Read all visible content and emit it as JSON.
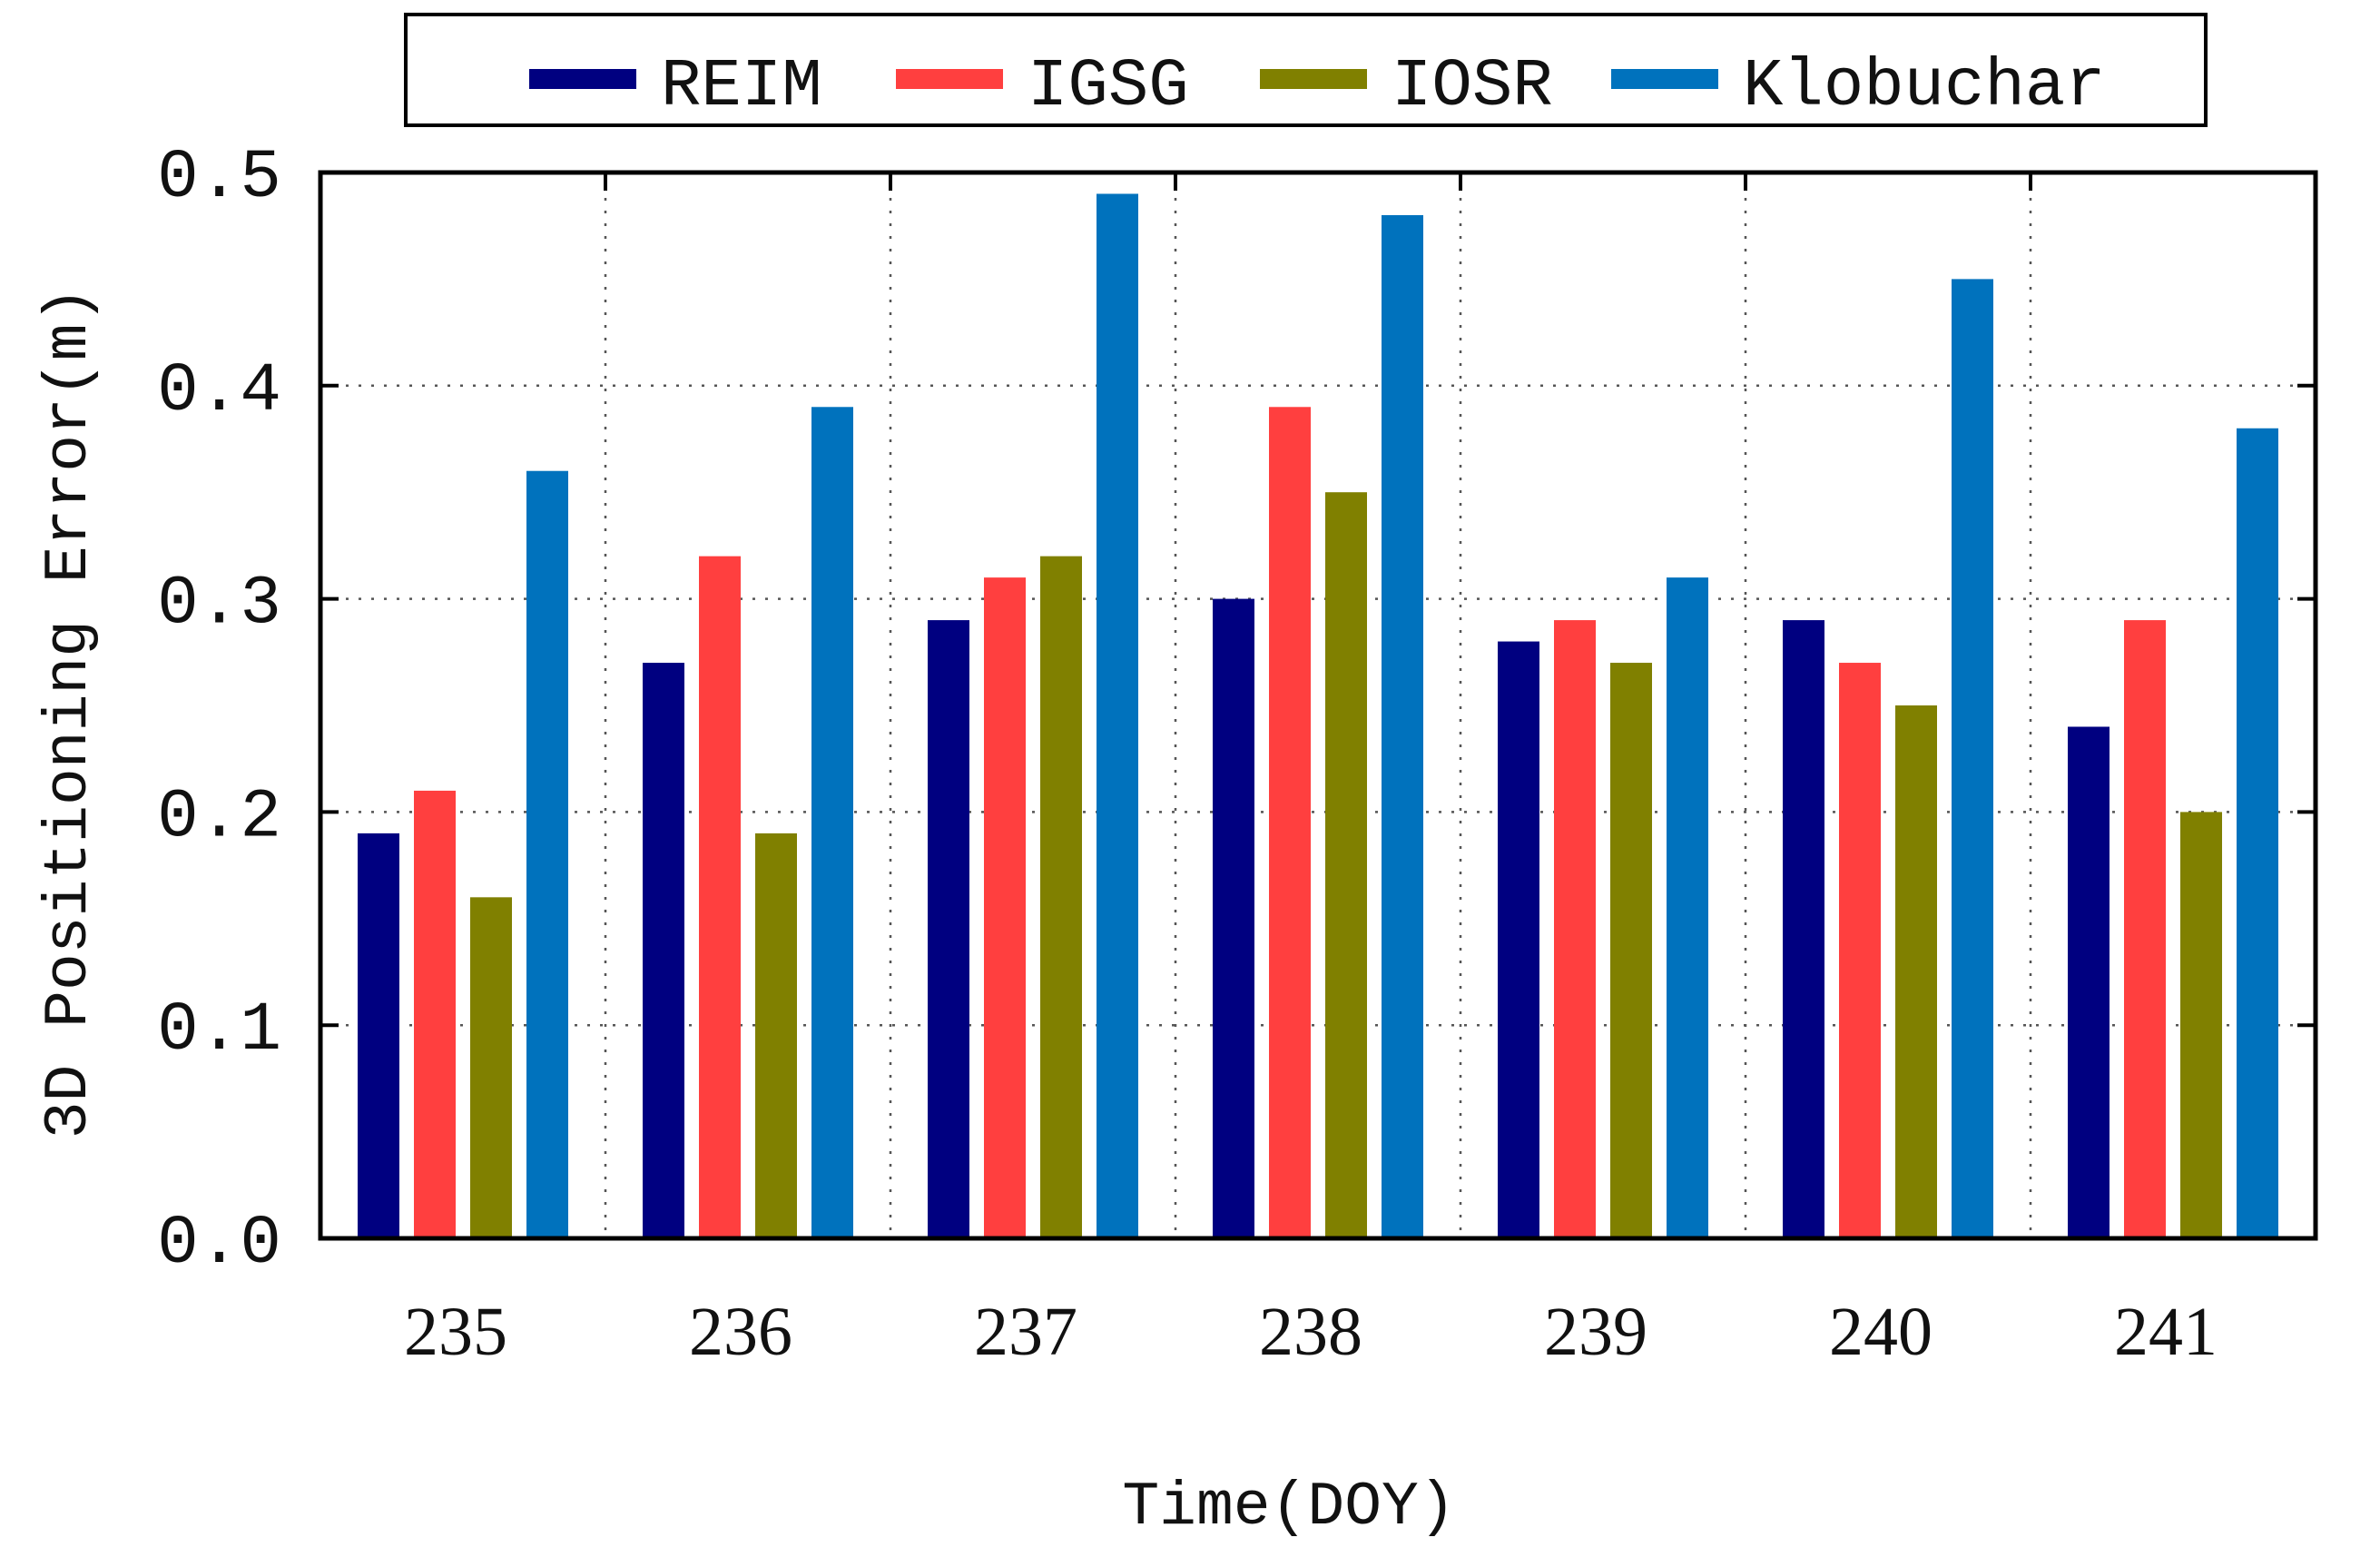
{
  "chart_data": {
    "type": "bar",
    "title": "",
    "xlabel": "Time(DOY)",
    "ylabel": "3D Positioning Error(m)",
    "ylim": [
      0,
      0.5
    ],
    "yticks": [
      0.0,
      0.1,
      0.2,
      0.3,
      0.4,
      0.5
    ],
    "ytick_labels": [
      "0.0",
      "0.1",
      "0.2",
      "0.3",
      "0.4",
      "0.5"
    ],
    "categories": [
      "235",
      "236",
      "237",
      "238",
      "239",
      "240",
      "241"
    ],
    "grid": true,
    "legend_position": "top-outside",
    "series": [
      {
        "name": "REIM",
        "color": "#000080",
        "values": [
          0.19,
          0.27,
          0.29,
          0.3,
          0.28,
          0.29,
          0.24
        ]
      },
      {
        "name": "IGSG",
        "color": "#ff3f3f",
        "values": [
          0.21,
          0.32,
          0.31,
          0.39,
          0.29,
          0.27,
          0.29
        ]
      },
      {
        "name": "IOSR",
        "color": "#808000",
        "values": [
          0.16,
          0.19,
          0.32,
          0.35,
          0.27,
          0.25,
          0.2
        ]
      },
      {
        "name": "Klobuchar",
        "color": "#0072bd",
        "values": [
          0.36,
          0.39,
          0.49,
          0.48,
          0.31,
          0.45,
          0.38
        ]
      }
    ]
  }
}
